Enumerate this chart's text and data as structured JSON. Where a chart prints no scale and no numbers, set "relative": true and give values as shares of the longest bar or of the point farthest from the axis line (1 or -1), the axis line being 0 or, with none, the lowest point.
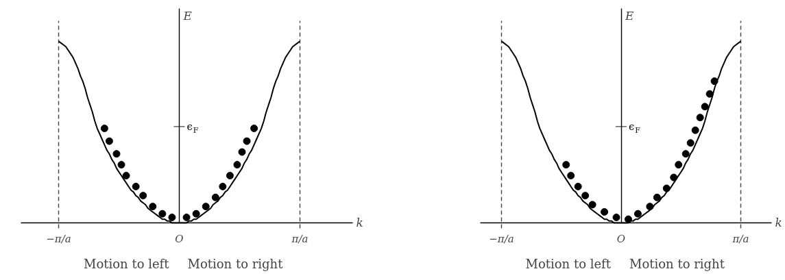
{
  "chart_data": [
    {
      "type": "line",
      "relative": true,
      "xlabel": "k",
      "ylabel": "E",
      "categories": [
        "−π/a",
        null,
        null,
        null,
        null,
        null,
        null,
        null,
        null,
        null,
        null,
        null,
        null,
        null,
        null,
        null,
        null,
        null,
        null,
        null,
        null,
        null,
        null,
        null,
        null,
        null,
        null,
        null,
        null,
        null,
        null,
        null,
        null,
        null,
        null,
        null,
        null,
        null,
        null,
        null,
        null,
        null,
        null,
        null,
        null,
        null,
        null,
        null,
        null,
        null,
        "O",
        null,
        null,
        null,
        null,
        null,
        null,
        null,
        null,
        null,
        null,
        null,
        null,
        null,
        null,
        null,
        null,
        null,
        null,
        null,
        null,
        null,
        null,
        null,
        null,
        null,
        null,
        null,
        null,
        null,
        null,
        null,
        null,
        null,
        null,
        null,
        null,
        null,
        null,
        null,
        null,
        null,
        null,
        null,
        null,
        null,
        null,
        null,
        null,
        null,
        "π/a"
      ],
      "series": [
        {
          "color": "#000000",
          "values": [
            1,
            0.99,
            0.98,
            0.97,
            0.95,
            0.93,
            0.91,
            0.88,
            0.85,
            0.81,
            0.78,
            0.74,
            0.69,
            0.65,
            0.61,
            0.56,
            0.52,
            0.49,
            0.46,
            0.43,
            0.4,
            0.38,
            0.35,
            0.33,
            0.3,
            0.28,
            0.26,
            0.24,
            0.22,
            0.2,
            0.18,
            0.17,
            0.15,
            0.14,
            0.12,
            0.11,
            0.1,
            0.08,
            0.07,
            0.06,
            0.05,
            0.04,
            0.03,
            0.02,
            0.02,
            0.01,
            0.01,
            0,
            0,
            0,
            0,
            0,
            0,
            0,
            0.01,
            0.01,
            0.02,
            0.02,
            0.03,
            0.04,
            0.05,
            0.06,
            0.07,
            0.08,
            0.1,
            0.11,
            0.12,
            0.14,
            0.15,
            0.17,
            0.18,
            0.2,
            0.22,
            0.24,
            0.26,
            0.28,
            0.3,
            0.33,
            0.35,
            0.38,
            0.4,
            0.43,
            0.46,
            0.49,
            0.52,
            0.56,
            0.61,
            0.65,
            0.69,
            0.74,
            0.78,
            0.81,
            0.85,
            0.88,
            0.91,
            0.93,
            0.95,
            0.97,
            0.98,
            0.99,
            1
          ]
        },
        {
          "type": "scatter",
          "color": "#000000",
          "marker": "circle",
          "values": [
            null,
            null,
            null,
            null,
            null,
            null,
            null,
            null,
            null,
            null,
            null,
            null,
            null,
            null,
            null,
            null,
            null,
            null,
            null,
            0.52,
            null,
            0.45,
            null,
            null,
            0.38,
            null,
            0.32,
            null,
            0.26,
            null,
            null,
            null,
            0.2,
            null,
            null,
            0.15,
            null,
            null,
            null,
            0.09,
            null,
            null,
            null,
            0.05,
            null,
            null,
            null,
            0.03,
            null,
            null,
            null,
            null,
            null,
            0.03,
            null,
            null,
            null,
            0.05,
            null,
            null,
            null,
            0.09,
            null,
            null,
            null,
            0.14,
            null,
            null,
            0.2,
            null,
            null,
            0.26,
            null,
            null,
            0.32,
            null,
            0.39,
            null,
            0.45,
            null,
            null,
            0.52,
            null,
            null,
            null,
            null,
            null,
            null,
            null,
            null,
            null,
            null,
            null,
            null,
            null,
            null,
            null,
            null,
            null,
            null,
            null
          ]
        }
      ],
      "ref_lines": [
        {
          "axis": "x",
          "value": "−π/a",
          "line_style": "dashed"
        },
        {
          "axis": "x",
          "value": "π/a",
          "line_style": "dashed"
        },
        {
          "axis": "y",
          "value": 0.53,
          "label": "ϵ$_{F}$"
        }
      ],
      "annotations": [
        "Motion to left",
        "Motion to right"
      ]
    },
    {
      "type": "line",
      "relative": true,
      "xlabel": "k",
      "ylabel": "E",
      "categories": [
        "−π/a",
        null,
        null,
        null,
        null,
        null,
        null,
        null,
        null,
        null,
        null,
        null,
        null,
        null,
        null,
        null,
        null,
        null,
        null,
        null,
        null,
        null,
        null,
        null,
        null,
        null,
        null,
        null,
        null,
        null,
        null,
        null,
        null,
        null,
        null,
        null,
        null,
        null,
        null,
        null,
        null,
        null,
        null,
        null,
        null,
        null,
        null,
        null,
        null,
        null,
        "O",
        null,
        null,
        null,
        null,
        null,
        null,
        null,
        null,
        null,
        null,
        null,
        null,
        null,
        null,
        null,
        null,
        null,
        null,
        null,
        null,
        null,
        null,
        null,
        null,
        null,
        null,
        null,
        null,
        null,
        null,
        null,
        null,
        null,
        null,
        null,
        null,
        null,
        null,
        null,
        null,
        null,
        null,
        null,
        null,
        null,
        null,
        null,
        null,
        null,
        "π/a"
      ],
      "series": [
        {
          "color": "#000000",
          "values": [
            1,
            0.99,
            0.98,
            0.97,
            0.95,
            0.93,
            0.91,
            0.88,
            0.85,
            0.81,
            0.78,
            0.74,
            0.69,
            0.65,
            0.61,
            0.56,
            0.52,
            0.49,
            0.46,
            0.43,
            0.4,
            0.38,
            0.35,
            0.33,
            0.3,
            0.28,
            0.26,
            0.24,
            0.22,
            0.2,
            0.18,
            0.17,
            0.15,
            0.14,
            0.12,
            0.11,
            0.1,
            0.08,
            0.07,
            0.06,
            0.05,
            0.04,
            0.03,
            0.02,
            0.02,
            0.01,
            0.01,
            0,
            0,
            0,
            0,
            0,
            0,
            0,
            0.01,
            0.01,
            0.02,
            0.02,
            0.03,
            0.04,
            0.05,
            0.06,
            0.07,
            0.08,
            0.1,
            0.11,
            0.12,
            0.14,
            0.15,
            0.17,
            0.18,
            0.2,
            0.22,
            0.24,
            0.26,
            0.28,
            0.3,
            0.33,
            0.35,
            0.38,
            0.4,
            0.43,
            0.46,
            0.49,
            0.52,
            0.56,
            0.61,
            0.65,
            0.69,
            0.74,
            0.78,
            0.81,
            0.85,
            0.88,
            0.91,
            0.93,
            0.95,
            0.97,
            0.98,
            0.99,
            1
          ]
        },
        {
          "type": "scatter",
          "color": "#000000",
          "marker": "circle",
          "values": [
            null,
            null,
            null,
            null,
            null,
            null,
            null,
            null,
            null,
            null,
            null,
            null,
            null,
            null,
            null,
            null,
            null,
            null,
            null,
            null,
            null,
            null,
            null,
            null,
            null,
            null,
            null,
            0.32,
            null,
            0.26,
            null,
            null,
            0.2,
            null,
            null,
            0.15,
            null,
            null,
            0.1,
            null,
            null,
            null,
            null,
            0.06,
            null,
            null,
            null,
            null,
            0.03,
            null,
            null,
            null,
            null,
            0.02,
            null,
            null,
            null,
            0.05,
            null,
            null,
            null,
            null,
            0.09,
            null,
            null,
            0.14,
            null,
            null,
            null,
            0.19,
            null,
            null,
            0.25,
            null,
            0.32,
            null,
            null,
            0.38,
            null,
            0.44,
            null,
            0.51,
            null,
            0.58,
            null,
            0.64,
            null,
            0.71,
            null,
            0.78,
            null,
            null,
            null,
            null,
            null,
            null,
            null,
            null,
            null,
            null,
            null
          ]
        }
      ],
      "ref_lines": [
        {
          "axis": "x",
          "value": "−π/a",
          "line_style": "dashed"
        },
        {
          "axis": "x",
          "value": "π/a",
          "line_style": "dashed"
        },
        {
          "axis": "y",
          "value": 0.53,
          "label": "ϵ$_{F}$"
        }
      ],
      "annotations": [
        "Motion to left",
        "Motion to right"
      ]
    }
  ]
}
